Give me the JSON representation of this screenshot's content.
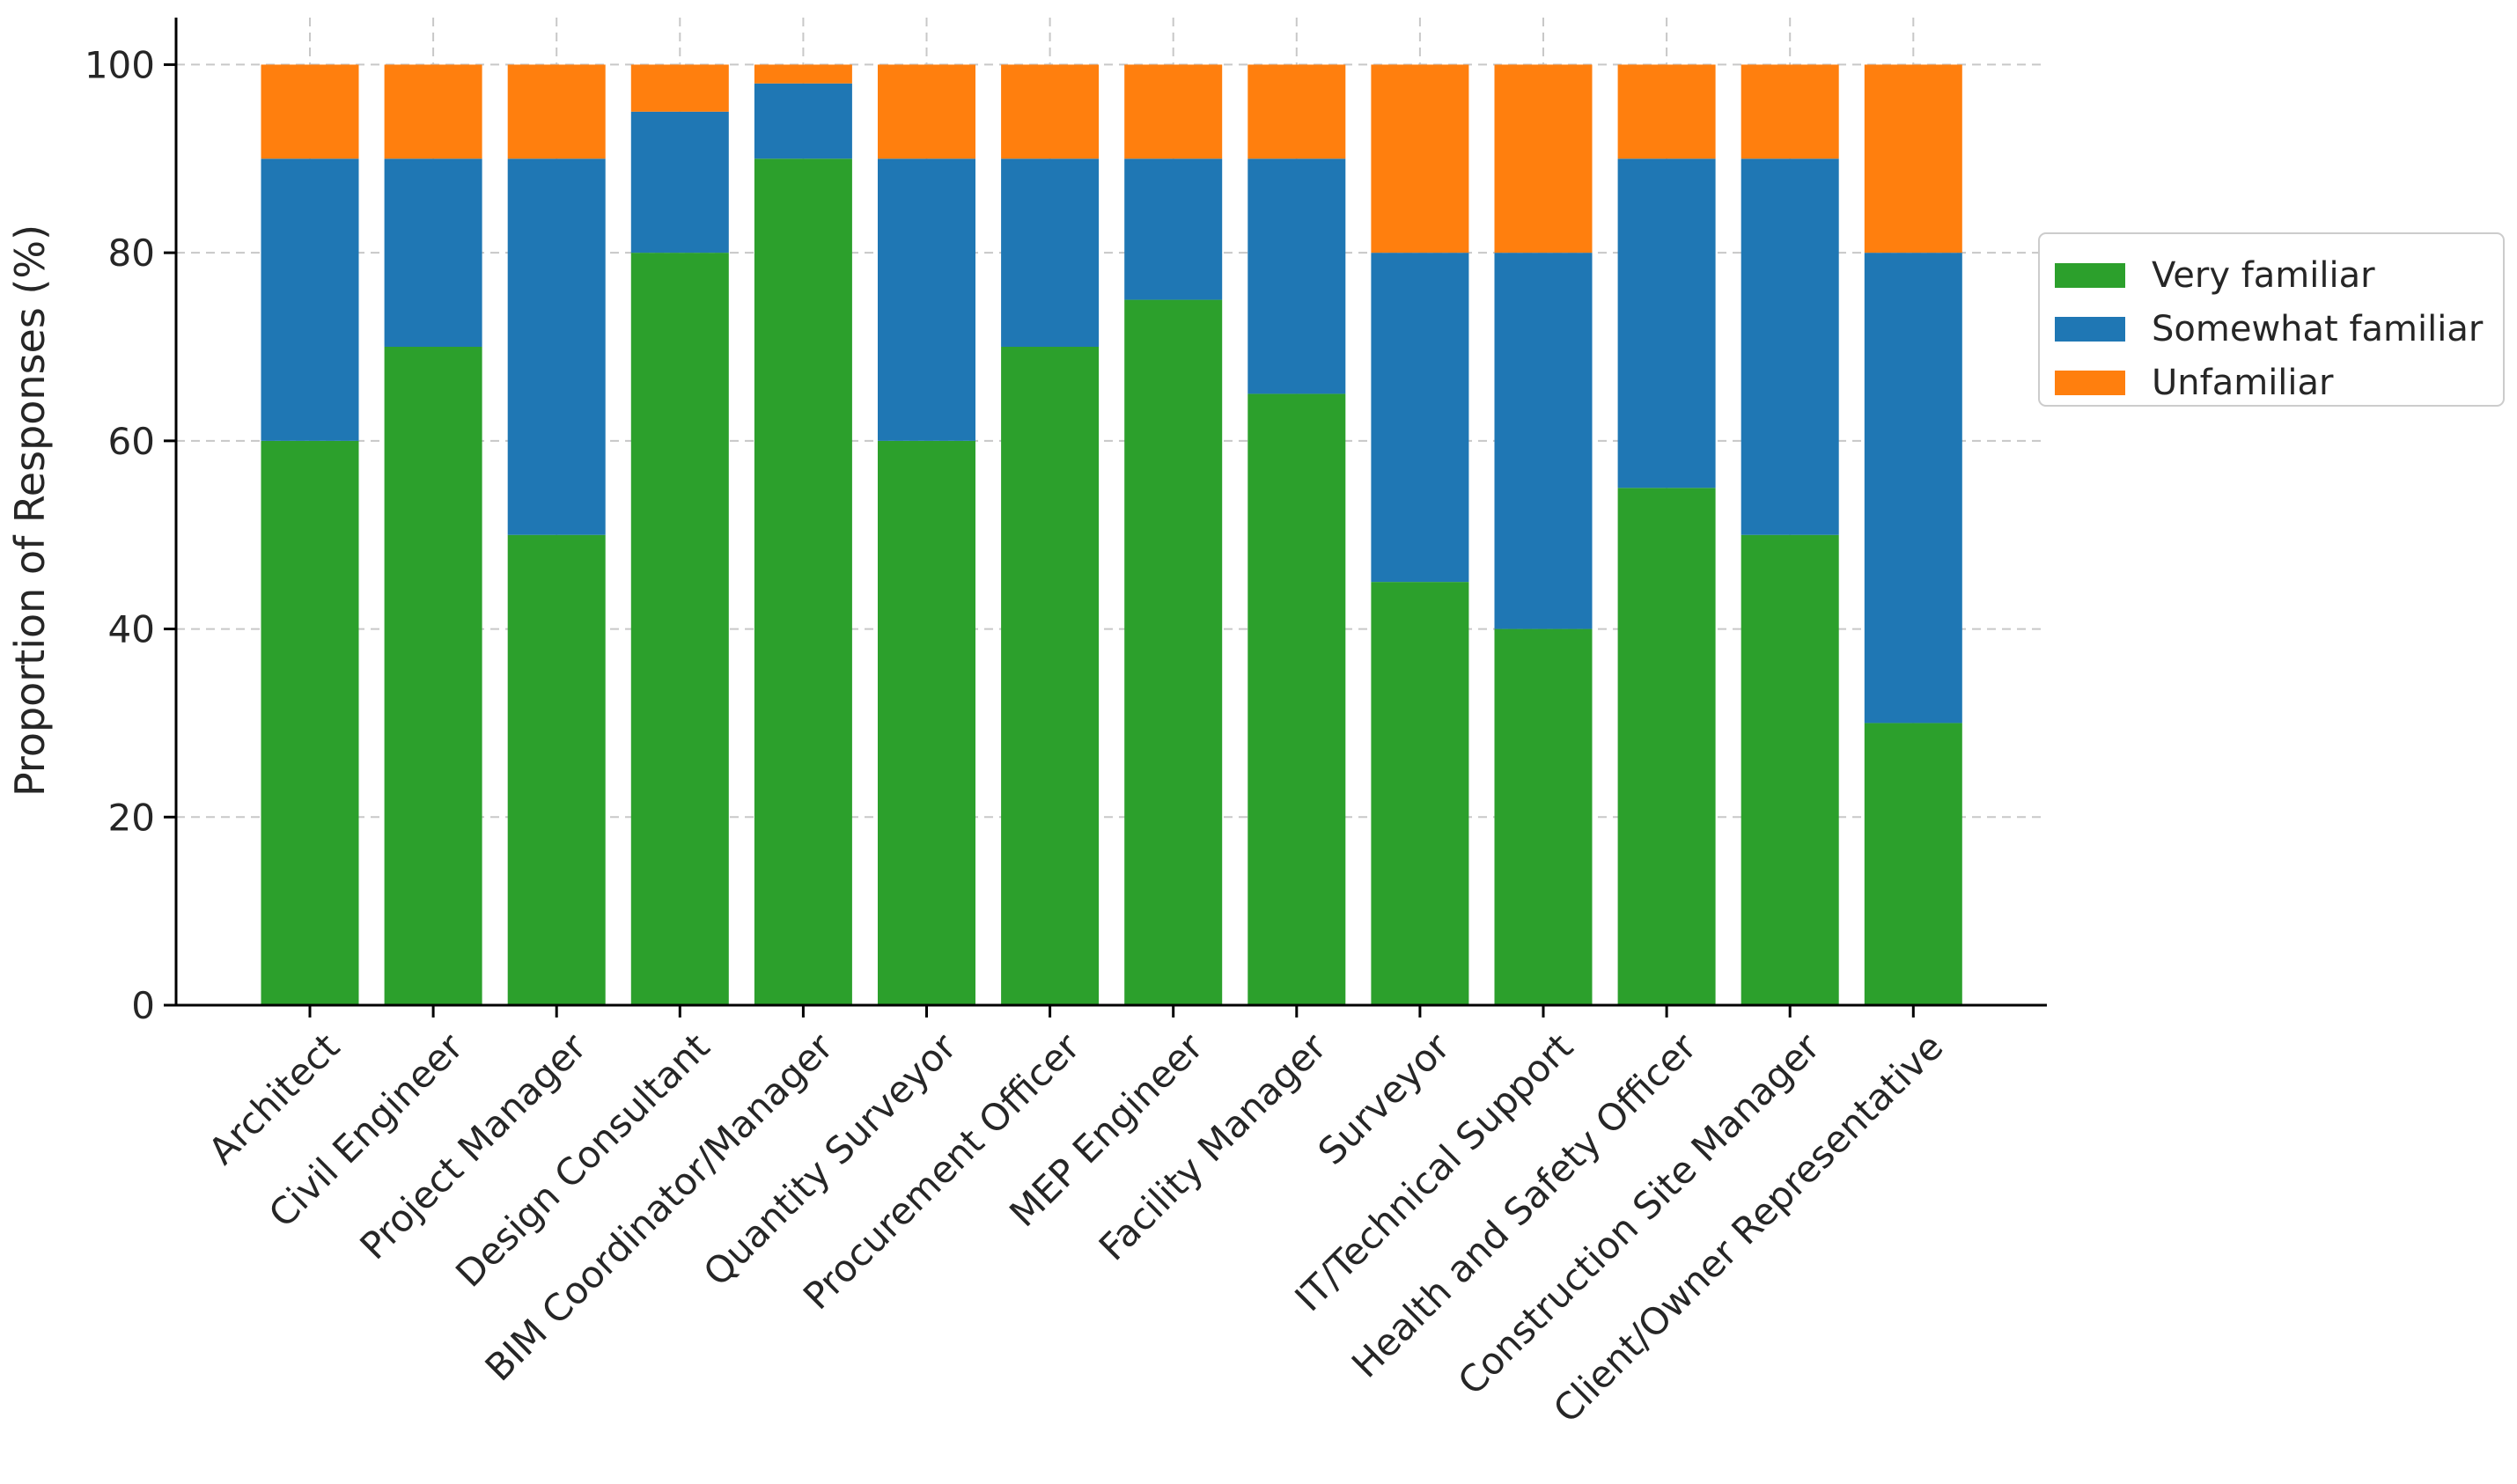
{
  "chart_data": {
    "type": "bar",
    "stacked": true,
    "title": "",
    "xlabel": "",
    "ylabel": "Proportion of Responses (%)",
    "ylim": [
      0,
      105
    ],
    "yticks": [
      0,
      20,
      40,
      60,
      80,
      100
    ],
    "grid": true,
    "legend_position": "center-right, outside plot",
    "categories": [
      "Architect",
      "Civil Engineer",
      "Project Manager",
      "Design Consultant",
      "BIM Coordinator/Manager",
      "Quantity Surveyor",
      "Procurement Officer",
      "MEP Engineer",
      "Facility Manager",
      "Surveyor",
      "IT/Technical Support",
      "Health and Safety Officer",
      "Construction Site Manager",
      "Client/Owner Representative"
    ],
    "series": [
      {
        "name": "Very familiar",
        "color": "#2ca02c",
        "values": [
          60,
          70,
          50,
          80,
          90,
          60,
          70,
          75,
          65,
          45,
          40,
          55,
          50,
          30
        ]
      },
      {
        "name": "Somewhat familiar",
        "color": "#1f77b4",
        "values": [
          30,
          20,
          40,
          15,
          8,
          30,
          20,
          15,
          25,
          35,
          40,
          35,
          40,
          50
        ]
      },
      {
        "name": "Unfamiliar",
        "color": "#ff7f0e",
        "values": [
          10,
          10,
          10,
          5,
          2,
          10,
          10,
          10,
          10,
          20,
          20,
          10,
          10,
          20
        ]
      }
    ]
  }
}
